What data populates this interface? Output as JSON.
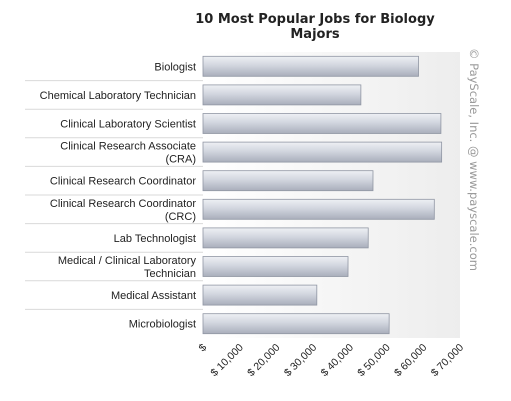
{
  "chart_data": {
    "type": "bar",
    "orientation": "horizontal",
    "title": "10 Most Popular Jobs for Biology Majors",
    "categories": [
      "Biologist",
      "Chemical Laboratory Technician",
      "Clinical Laboratory Scientist",
      "Clinical Research Associate (CRA)",
      "Clinical Research Coordinator",
      "Clinical Research Coordinator (CRC)",
      "Lab Technologist",
      "Medical / Clinical Laboratory Technician",
      "Medical Assistant",
      "Microbiologist"
    ],
    "values": [
      58700,
      43000,
      64800,
      65000,
      46300,
      63000,
      45000,
      39500,
      31000,
      50700
    ],
    "xlim": [
      0,
      70000
    ],
    "xticks": [
      0,
      10000,
      20000,
      30000,
      40000,
      50000,
      60000,
      70000
    ],
    "xtick_labels": [
      "$",
      "$ 10,000",
      "$ 20,000",
      "$ 30,000",
      "$ 40,000",
      "$ 50,000",
      "$ 60,000",
      "$ 70,000"
    ],
    "grid": false,
    "bar_color": "#c8ccd6"
  },
  "watermark": "© PayScale, Inc. @ www.payscale.com"
}
